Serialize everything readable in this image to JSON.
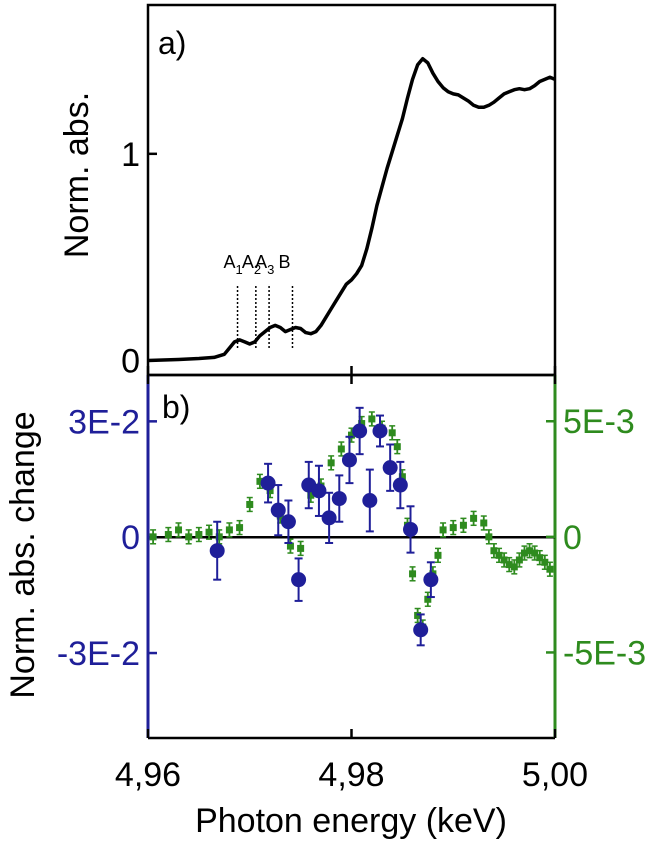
{
  "chart_data": [
    {
      "panel": "a)",
      "type": "line",
      "ylabel": "Norm. abs.",
      "xlim": [
        4.96,
        5.0
      ],
      "ylim": [
        -0.07,
        1.72
      ],
      "yticks": [
        {
          "v": 0,
          "label": "0"
        },
        {
          "v": 1,
          "label": "1"
        }
      ],
      "color": "#000000",
      "series": [
        {
          "x": [
            4.96,
            4.963,
            4.965,
            4.9665,
            4.9675,
            4.968,
            4.9685,
            4.969,
            4.9695,
            4.97,
            4.9705,
            4.971,
            4.9715,
            4.972,
            4.9725,
            4.973,
            4.9735,
            4.974,
            4.9745,
            4.975,
            4.9755,
            4.976,
            4.9765,
            4.977,
            4.9775,
            4.978,
            4.9785,
            4.979,
            4.9795,
            4.98,
            4.9805,
            4.981,
            4.9815,
            4.982,
            4.9825,
            4.983,
            4.9835,
            4.984,
            4.9845,
            4.985,
            4.9855,
            4.986,
            4.9865,
            4.987,
            4.9875,
            4.988,
            4.9885,
            4.989,
            4.9895,
            4.99,
            4.9905,
            4.991,
            4.9915,
            4.992,
            4.9925,
            4.993,
            4.9935,
            4.994,
            4.9945,
            4.995,
            4.9955,
            4.996,
            4.9965,
            4.997,
            4.9975,
            4.998,
            4.9985,
            4.999,
            4.9995,
            5.0
          ],
          "y": [
            0.0,
            0.005,
            0.01,
            0.015,
            0.03,
            0.06,
            0.09,
            0.1,
            0.09,
            0.08,
            0.09,
            0.12,
            0.14,
            0.16,
            0.17,
            0.16,
            0.14,
            0.15,
            0.16,
            0.155,
            0.135,
            0.13,
            0.14,
            0.17,
            0.21,
            0.25,
            0.29,
            0.33,
            0.37,
            0.39,
            0.42,
            0.46,
            0.54,
            0.64,
            0.75,
            0.84,
            0.93,
            1.01,
            1.09,
            1.17,
            1.27,
            1.36,
            1.43,
            1.46,
            1.44,
            1.39,
            1.35,
            1.32,
            1.3,
            1.29,
            1.285,
            1.27,
            1.255,
            1.235,
            1.225,
            1.225,
            1.235,
            1.25,
            1.27,
            1.29,
            1.3,
            1.31,
            1.315,
            1.31,
            1.315,
            1.33,
            1.35,
            1.36,
            1.37,
            1.36
          ]
        }
      ],
      "markers": [
        {
          "x": 4.9688,
          "label": "A",
          "sub": "1"
        },
        {
          "x": 4.9706,
          "label": "A",
          "sub": "2"
        },
        {
          "x": 4.9719,
          "label": "A",
          "sub": "3"
        },
        {
          "x": 4.9742,
          "label": "B",
          "sub": ""
        }
      ]
    },
    {
      "panel": "b)",
      "type": "scatter",
      "ylabel": "Norm. abs. change",
      "xlabel": "Photon energy (keV)",
      "xlim": [
        4.96,
        5.0
      ],
      "xticks": [
        {
          "v": 4.96,
          "label": "4,96"
        },
        {
          "v": 4.98,
          "label": "4,98"
        },
        {
          "v": 5.0,
          "label": "5,00"
        }
      ],
      "ylim_left": [
        -0.052,
        0.042
      ],
      "yticks_left": [
        {
          "v": -0.03,
          "label": "-3E-2"
        },
        {
          "v": 0,
          "label": "0"
        },
        {
          "v": 0.03,
          "label": "3E-2"
        }
      ],
      "ylim_right": [
        -0.0087,
        0.007
      ],
      "yticks_right": [
        {
          "v": -0.005,
          "label": "-5E-3"
        },
        {
          "v": 0,
          "label": "0"
        },
        {
          "v": 0.005,
          "label": "5E-3"
        }
      ],
      "left_color": "#1f1f99",
      "right_color": "#2e8b1e",
      "series": [
        {
          "axis": "left",
          "color": "#1f1f99",
          "x": [
            4.9668,
            4.9718,
            4.9728,
            4.9738,
            4.9748,
            4.9758,
            4.9768,
            4.9778,
            4.9788,
            4.9798,
            4.9808,
            4.9818,
            4.9828,
            4.9838,
            4.9848,
            4.9858,
            4.9868,
            4.9878
          ],
          "y": [
            -0.0035,
            0.014,
            0.007,
            0.004,
            -0.011,
            0.0135,
            0.012,
            0.005,
            0.01,
            0.02,
            0.0275,
            0.0095,
            0.0275,
            0.018,
            0.0135,
            0.002,
            -0.024,
            -0.011
          ],
          "err": [
            0.0075,
            0.005,
            0.0065,
            0.0055,
            0.0055,
            0.006,
            0.0065,
            0.0065,
            0.006,
            0.006,
            0.006,
            0.008,
            0.004,
            0.006,
            0.006,
            0.006,
            0.004,
            0.0045
          ]
        },
        {
          "axis": "right",
          "color": "#2e8b1e",
          "x": [
            4.9605,
            4.962,
            4.963,
            4.964,
            4.965,
            4.966,
            4.967,
            4.968,
            4.969,
            4.97,
            4.971,
            4.972,
            4.973,
            4.974,
            4.975,
            4.976,
            4.977,
            4.978,
            4.979,
            4.98,
            4.981,
            4.982,
            4.983,
            4.984,
            4.9845,
            4.985,
            4.9855,
            4.986,
            4.9865,
            4.987,
            4.9875,
            4.988,
            4.9885,
            4.989,
            4.99,
            4.991,
            4.992,
            4.993,
            4.9935,
            4.994,
            4.9945,
            4.995,
            4.9955,
            4.996,
            4.9965,
            4.997,
            4.9975,
            4.998,
            4.9985,
            4.999,
            4.9995
          ],
          "y": [
            0.0,
            0.0001,
            0.0003,
            0.0,
            0.0001,
            0.0002,
            0.0,
            0.0003,
            0.0004,
            0.0014,
            0.0024,
            0.002,
            0.0009,
            -0.0004,
            -0.0005,
            0.0018,
            0.0022,
            0.0032,
            0.0038,
            0.0044,
            0.0049,
            0.0051,
            0.0047,
            0.0045,
            0.0039,
            0.0026,
            0.0005,
            -0.0016,
            -0.0034,
            -0.0039,
            -0.0027,
            -0.0016,
            -0.0008,
            0.0003,
            0.0004,
            0.0005,
            0.0008,
            0.0006,
            0.0,
            -0.0006,
            -0.0008,
            -0.001,
            -0.0012,
            -0.0013,
            -0.001,
            -0.0007,
            -0.0006,
            -0.0007,
            -0.0009,
            -0.0011,
            -0.0014
          ],
          "err": 0.0003
        }
      ]
    }
  ]
}
